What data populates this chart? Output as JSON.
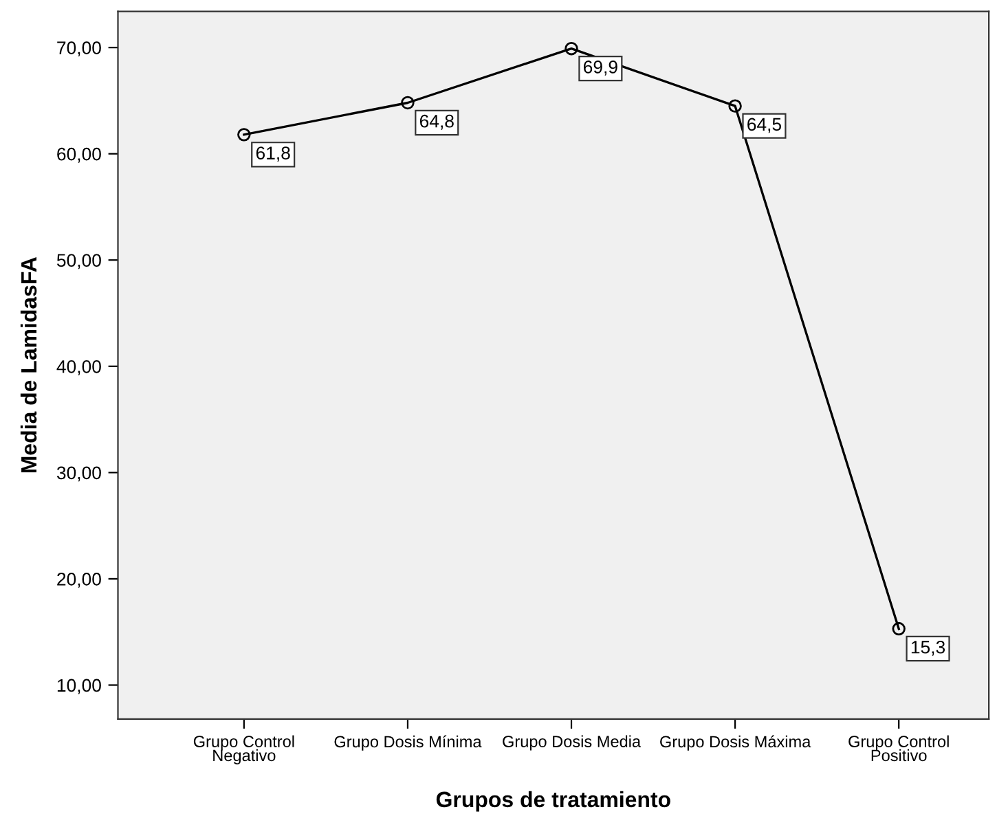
{
  "chart_data": {
    "type": "line",
    "xlabel": "Grupos de tratamiento",
    "ylabel": "Media de LamidasFA",
    "categories": [
      "Grupo Control\nNegativo",
      "Grupo Dosis Mínima",
      "Grupo Dosis Media",
      "Grupo Dosis Máxima",
      "Grupo Control\nPositivo"
    ],
    "series": [
      {
        "color": "#000000",
        "values": [
          61.8,
          64.8,
          69.9,
          64.5,
          15.3
        ],
        "value_labels": [
          "61,8",
          "64,8",
          "69,9",
          "64,5",
          "15,3"
        ]
      }
    ],
    "ylim": [
      6.8,
      73.4
    ],
    "yticks": [
      {
        "value": 10,
        "label": "10,00"
      },
      {
        "value": 20,
        "label": "20,00"
      },
      {
        "value": 30,
        "label": "30,00"
      },
      {
        "value": 40,
        "label": "40,00"
      },
      {
        "value": 50,
        "label": "50,00"
      },
      {
        "value": 60,
        "label": "60,00"
      },
      {
        "value": 70,
        "label": "70,00"
      }
    ],
    "marker": "circle",
    "line_style": "solid",
    "grid": false
  }
}
